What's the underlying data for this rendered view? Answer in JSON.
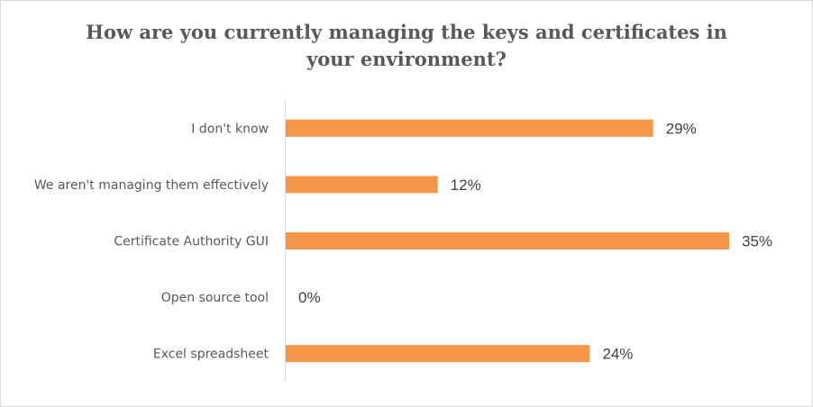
{
  "chart_data": {
    "type": "bar",
    "orientation": "horizontal",
    "title": "How are you currently managing the keys and certificates in your environment?",
    "categories": [
      "I don't know",
      "We aren't managing them effectively",
      "Certificate Authority GUI",
      "Open source tool",
      "Excel spreadsheet"
    ],
    "values": [
      29,
      12,
      35,
      0,
      24
    ],
    "value_labels": [
      "29%",
      "12%",
      "35%",
      "0%",
      "24%"
    ],
    "xlim": [
      0,
      35
    ],
    "grid": false,
    "legend": "none",
    "bar_color": "#F79646"
  }
}
